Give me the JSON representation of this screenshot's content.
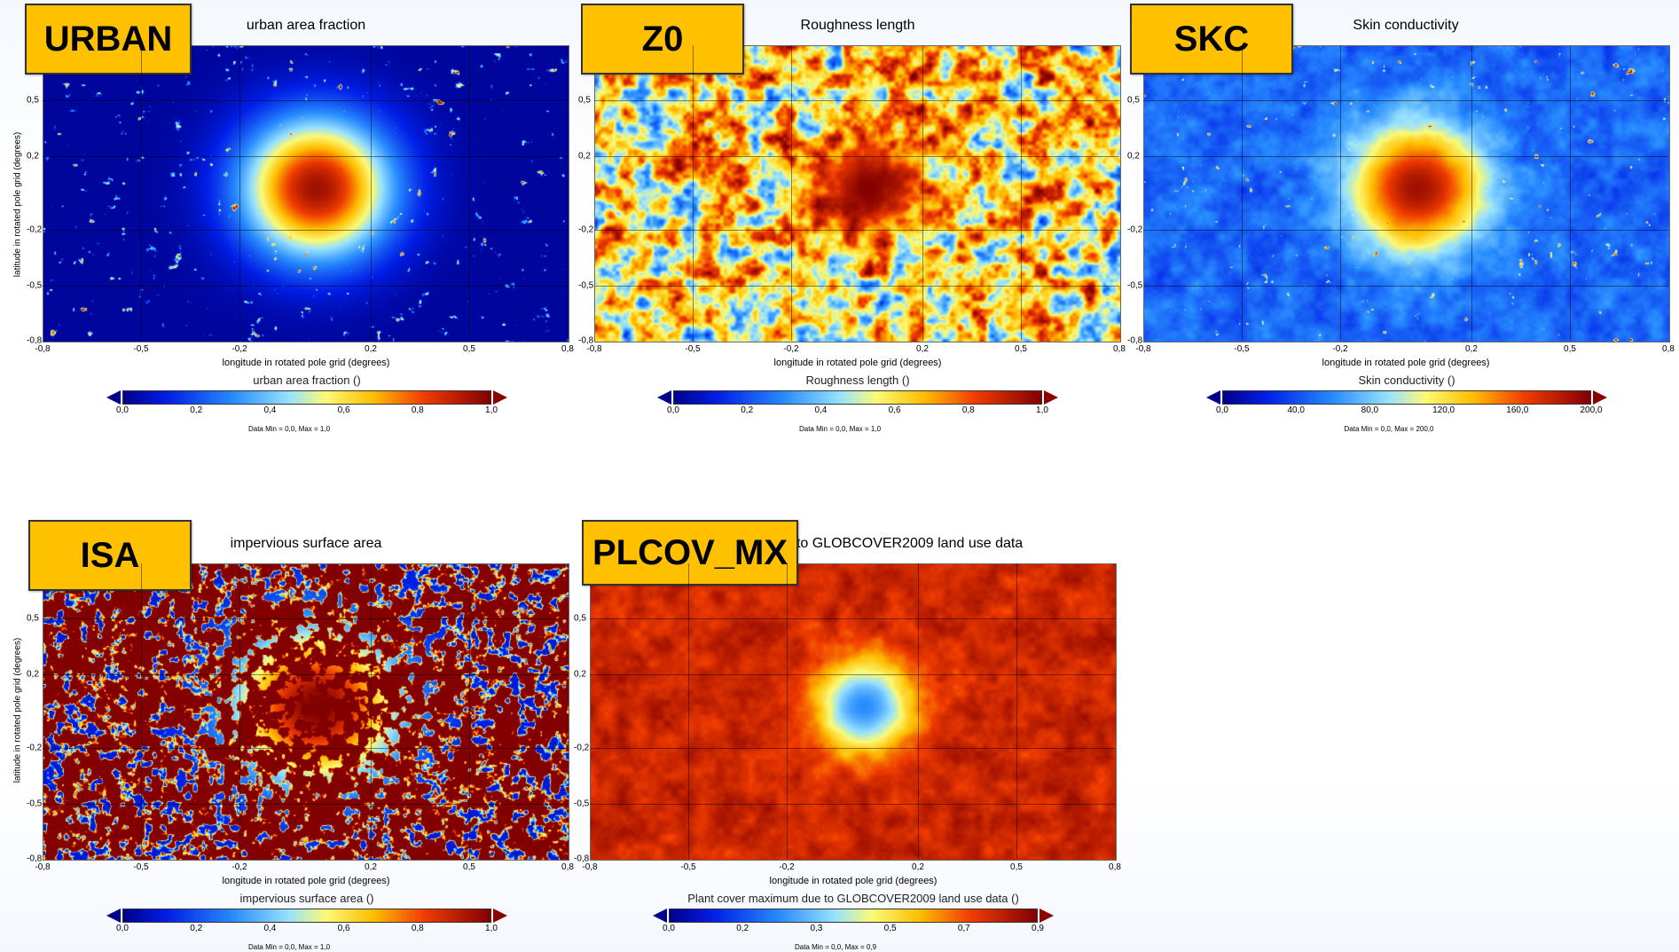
{
  "chart_data": [
    {
      "type": "heatmap",
      "tag": "URBAN",
      "title": "urban area fraction",
      "xlabel": "longitude in rotated pole grid (degrees)",
      "ylabel": "latitude in rotated pole grid (degrees)",
      "xticks": [
        "-0,8",
        "-0,5",
        "-0,2",
        "0,2",
        "0,5",
        "0,8"
      ],
      "yticks": [
        "0,5",
        "0,2",
        "-0,2",
        "-0,5",
        "-0,8"
      ],
      "xlim": [
        -0.8,
        0.8
      ],
      "ylim": [
        -0.8,
        0.8
      ],
      "colorbar": {
        "title": "urban area fraction ()",
        "ticks": [
          "0,0",
          "0,2",
          "0,4",
          "0,6",
          "0,8",
          "1,0"
        ],
        "range": [
          0,
          1
        ],
        "minmax": "Data Min = 0,0, Max = 1,0"
      },
      "pattern": {
        "base": 0.02,
        "center": 0.95,
        "radius": 0.2,
        "noise": 0.0,
        "spots": 0.75
      }
    },
    {
      "type": "heatmap",
      "tag": "Z0",
      "title": "Roughness length",
      "xlabel": "longitude in rotated pole grid (degrees)",
      "ylabel": "",
      "xticks": [
        "-0,8",
        "-0,5",
        "-0,2",
        "0,2",
        "0,5",
        "0,8"
      ],
      "yticks": [
        "0,5",
        "0,2",
        "-0,2",
        "-0,5",
        "-0,8"
      ],
      "xlim": [
        -0.8,
        0.8
      ],
      "ylim": [
        -0.8,
        0.8
      ],
      "colorbar": {
        "title": "Roughness length ()",
        "ticks": [
          "0,0",
          "0,2",
          "0,4",
          "0,6",
          "0,8",
          "1,0"
        ],
        "range": [
          0,
          1
        ],
        "minmax": "Data Min = 0,0, Max = 1,0"
      },
      "pattern": {
        "base": 0.6,
        "center": 1.0,
        "radius": 0.15,
        "noise": 0.55,
        "spots": 0.0
      }
    },
    {
      "type": "heatmap",
      "tag": "SKC",
      "title": "Skin conductivity",
      "xlabel": "longitude in rotated pole grid (degrees)",
      "ylabel": "",
      "xticks": [
        "-0,8",
        "-0,5",
        "-0,2",
        "0,2",
        "0,5",
        "0,8"
      ],
      "yticks": [
        "0,5",
        "0,2",
        "-0,2",
        "-0,5",
        "-0,8"
      ],
      "xlim": [
        -0.8,
        0.8
      ],
      "ylim": [
        -0.8,
        0.8
      ],
      "colorbar": {
        "title": "Skin conductivity ()",
        "ticks": [
          "0,0",
          "40,0",
          "80,0",
          "120,0",
          "160,0",
          "200,0"
        ],
        "range": [
          0,
          200
        ],
        "minmax": "Data Min = 0,0, Max = 200,0"
      },
      "pattern": {
        "base": 0.24,
        "center": 0.95,
        "radius": 0.18,
        "noise": 0.1,
        "spots": 0.75
      }
    },
    {
      "type": "heatmap",
      "tag": "ISA",
      "title": "impervious surface area",
      "xlabel": "longitude in rotated pole grid (degrees)",
      "ylabel": "latitude in rotated pole grid (degrees)",
      "xticks": [
        "-0,8",
        "-0,5",
        "-0,2",
        "0,2",
        "0,5",
        "0,8"
      ],
      "yticks": [
        "0,5",
        "0,2",
        "-0,2",
        "-0,5",
        "-0,8"
      ],
      "xlim": [
        -0.8,
        0.8
      ],
      "ylim": [
        -0.8,
        0.8
      ],
      "colorbar": {
        "title": "impervious surface area ()",
        "ticks": [
          "0,0",
          "0,2",
          "0,4",
          "0,6",
          "0,8",
          "1,0"
        ],
        "range": [
          0,
          1
        ],
        "minmax": "Data Min = 0,0, Max = 1,0"
      },
      "pattern": {
        "base": 0.1,
        "center": 1.0,
        "radius": 0.22,
        "noise": 0.0,
        "spots": 0.3
      }
    },
    {
      "type": "heatmap",
      "tag": "PLCOV_MX",
      "title": "due to GLOBCOVER2009 land use data",
      "xlabel": "longitude in rotated pole grid (degrees)",
      "ylabel": "",
      "xticks": [
        "-0,8",
        "-0,5",
        "-0,2",
        "0,2",
        "0,5",
        "0,8"
      ],
      "yticks": [
        "0,5",
        "0,2",
        "-0,2",
        "-0,5",
        "-0,8"
      ],
      "xlim": [
        -0.8,
        0.8
      ],
      "ylim": [
        -0.8,
        0.8
      ],
      "colorbar": {
        "title": "Plant cover maximum due to GLOBCOVER2009 land use data ()",
        "ticks": [
          "0,0",
          "0,2",
          "0,3",
          "0,5",
          "0,7",
          "0,9"
        ],
        "range": [
          0,
          0.9
        ],
        "minmax": "Data Min = 0,0, Max = 0,9"
      },
      "pattern": {
        "base": 0.88,
        "center": 0.3,
        "radius": 0.13,
        "noise": 0.1,
        "spots": 0.0
      }
    }
  ]
}
